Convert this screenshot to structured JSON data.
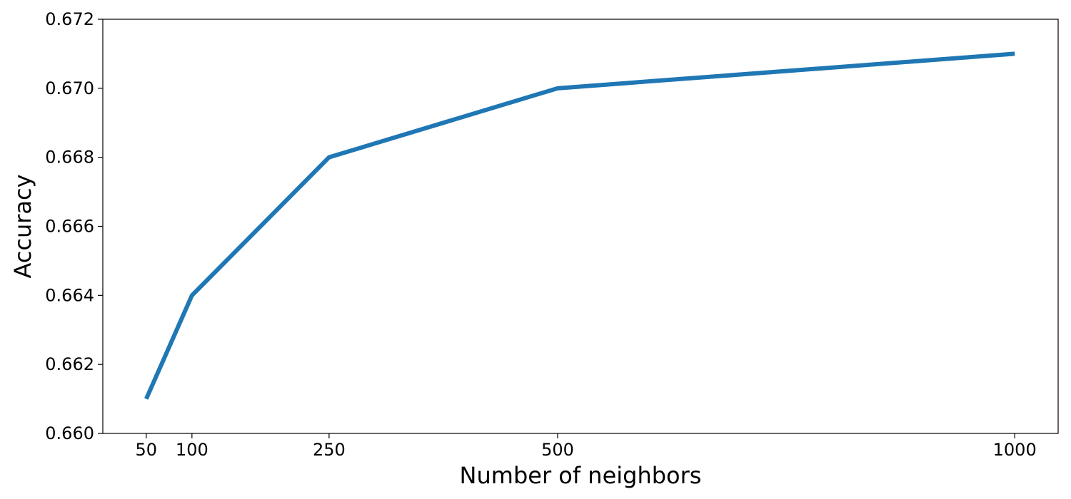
{
  "colors": {
    "series": "#1f77b4",
    "axis": "#000000",
    "background": "#ffffff"
  },
  "chart_data": {
    "type": "line",
    "title": "",
    "xlabel": "Number of neighbors",
    "ylabel": "Accuracy",
    "x": [
      50,
      100,
      250,
      500,
      1000
    ],
    "series": [
      {
        "values": [
          0.661,
          0.664,
          0.668,
          0.67,
          0.671
        ]
      }
    ],
    "xticks": [
      50,
      100,
      250,
      500,
      1000
    ],
    "xtick_labels": [
      "50",
      "100",
      "250",
      "500",
      "1000"
    ],
    "yticks": [
      0.66,
      0.662,
      0.664,
      0.666,
      0.668,
      0.67,
      0.672
    ],
    "ytick_labels": [
      "0.660",
      "0.662",
      "0.664",
      "0.666",
      "0.668",
      "0.670",
      "0.672"
    ],
    "xlim": [
      2.5,
      1047.5
    ],
    "ylim": [
      0.66,
      0.672
    ],
    "grid": false,
    "legend": "none"
  }
}
